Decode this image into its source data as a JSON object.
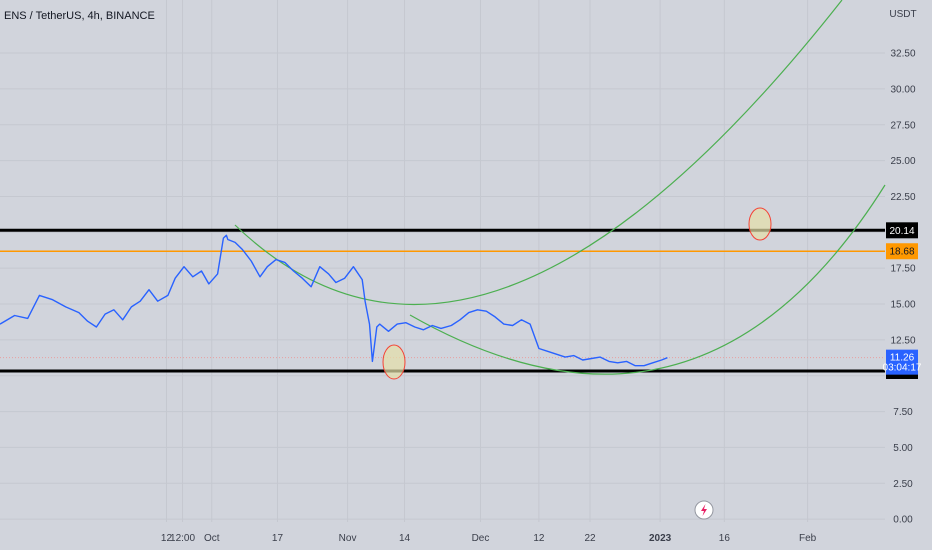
{
  "header": {
    "title": "ENS / TetherUS, 4h, BINANCE"
  },
  "price_axis": {
    "unit": "USDT"
  },
  "chart_data": {
    "type": "line",
    "title": "ENS / TetherUS, 4h, BINANCE",
    "ylabel": "USDT",
    "ylim": [
      -0.2,
      36.2
    ],
    "y_ticks": [
      "0.00",
      "2.50",
      "5.00",
      "7.50",
      "10.00",
      "12.50",
      "15.00",
      "17.50",
      "20.00",
      "22.50",
      "25.00",
      "27.50",
      "30.00",
      "32.50"
    ],
    "x_ticks": [
      "12",
      "12:00",
      "Oct",
      "17",
      "Nov",
      "14",
      "Dec",
      "12",
      "22",
      "2023",
      "16",
      "Feb"
    ],
    "x_tick_positions": [
      11.4,
      12.5,
      14.5,
      19,
      23.8,
      27.7,
      32.9,
      36.9,
      40.4,
      45.2,
      49.6,
      55.3
    ],
    "xlim": [
      0,
      60.6
    ],
    "grid": true,
    "series": [
      {
        "color": "#2962ff",
        "x": [
          0,
          1.0,
          1.9,
          2.7,
          3.6,
          4.5,
          5.4,
          6.0,
          6.6,
          7.2,
          7.8,
          8.4,
          9.0,
          9.6,
          10.2,
          10.8,
          11.5,
          12.0,
          12.6,
          13.2,
          13.8,
          14.3,
          14.9,
          15.3,
          15.5,
          15.6,
          16.1,
          16.6,
          17.2,
          17.8,
          18.3,
          18.9,
          19.5,
          20.1,
          20.7,
          21.3,
          21.9,
          22.5,
          23.0,
          23.6,
          24.2,
          24.8,
          25.0,
          25.3,
          25.5,
          25.6,
          25.8,
          26.0,
          26.6,
          27.2,
          27.8,
          28.4,
          29.0,
          29.6,
          30.2,
          30.9,
          31.5,
          32.1,
          32.7,
          33.3,
          33.9,
          34.5,
          35.1,
          35.7,
          36.3,
          36.9,
          37.5,
          38.1,
          38.7,
          39.3,
          39.9,
          40.5,
          41.1,
          41.7,
          42.3,
          42.9,
          43.5,
          44.1,
          44.7,
          45.3,
          45.7
        ],
        "y": [
          13.6,
          14.2,
          14.0,
          15.6,
          15.3,
          14.8,
          14.4,
          13.8,
          13.4,
          14.3,
          14.6,
          13.9,
          14.8,
          15.2,
          16.0,
          15.2,
          15.6,
          16.8,
          17.6,
          16.9,
          17.3,
          16.4,
          17.1,
          19.6,
          19.8,
          19.5,
          19.3,
          18.8,
          18.0,
          16.9,
          17.6,
          18.1,
          17.9,
          17.3,
          16.8,
          16.2,
          17.6,
          17.1,
          16.5,
          16.8,
          17.6,
          16.7,
          15.2,
          13.6,
          11.0,
          11.8,
          13.4,
          13.6,
          13.1,
          13.6,
          13.7,
          13.4,
          13.2,
          13.5,
          13.3,
          13.5,
          13.9,
          14.4,
          14.6,
          14.5,
          14.1,
          13.6,
          13.5,
          13.9,
          13.6,
          11.9,
          11.7,
          11.5,
          11.3,
          11.4,
          11.1,
          11.2,
          11.3,
          11.0,
          10.9,
          11.0,
          10.7,
          10.7,
          10.9,
          11.1,
          11.26
        ]
      }
    ],
    "horizontal_levels": [
      {
        "value": 20.14,
        "label": "20.14",
        "color": "#000000"
      },
      {
        "value": 18.68,
        "label": "18.68",
        "color": "#ff9800"
      },
      {
        "value": 10.33,
        "label": "10.33",
        "color": "#000000"
      }
    ],
    "current_price": {
      "value": 11.26,
      "label": "11.26",
      "countdown": "03:04:17",
      "color": "#2962ff"
    },
    "arcs_color": "#4caf50",
    "circles_color": "#f44336",
    "event_icon": "lightning-icon"
  }
}
